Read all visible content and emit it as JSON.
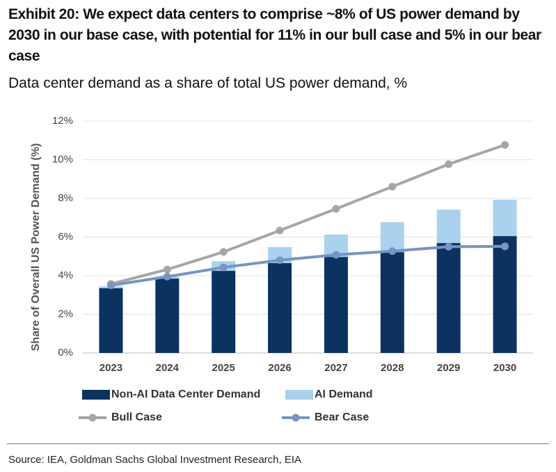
{
  "chart_data": {
    "type": "combo",
    "title": "Exhibit 20: We expect data centers to comprise ~8% of US power demand by 2030 in our base case, with potential for 11% in our bull case and 5% in our bear case",
    "subtitle": "Data center demand as a share of total US power demand, %",
    "y_label": "Share of Overall US Power Demand (%)",
    "source": "Source: IEA, Goldman Sachs Global Investment Research, EIA",
    "categories": [
      "2023",
      "2024",
      "2025",
      "2026",
      "2027",
      "2028",
      "2029",
      "2030"
    ],
    "series": [
      {
        "name": "Non-AI Data Center Demand",
        "type": "bar",
        "color": "#0b3260",
        "values": [
          3.35,
          3.85,
          4.25,
          4.65,
          4.97,
          5.22,
          5.69,
          6.05
        ]
      },
      {
        "name": "AI Demand",
        "type": "bar",
        "color": "#a9d2ee",
        "values": [
          0.1,
          0.1,
          0.5,
          0.83,
          1.16,
          1.55,
          1.73,
          1.88
        ]
      },
      {
        "name": "Bull Case",
        "type": "line",
        "color": "#a6a6a6",
        "values": [
          3.57,
          4.32,
          5.23,
          6.34,
          7.46,
          8.61,
          9.77,
          10.77
        ]
      },
      {
        "name": "Bear Case",
        "type": "line",
        "color": "#7595c4",
        "values": [
          3.5,
          3.95,
          4.43,
          4.8,
          5.08,
          5.27,
          5.5,
          5.52
        ]
      }
    ],
    "stacked": true,
    "ylim": [
      0,
      12
    ],
    "yticks": [
      {
        "value": 0,
        "label": "0%"
      },
      {
        "value": 2,
        "label": "2%"
      },
      {
        "value": 4,
        "label": "4%"
      },
      {
        "value": 6,
        "label": "6%"
      },
      {
        "value": 8,
        "label": "8%"
      },
      {
        "value": 10,
        "label": "10%"
      },
      {
        "value": 12,
        "label": "12%"
      }
    ],
    "grid": true
  }
}
